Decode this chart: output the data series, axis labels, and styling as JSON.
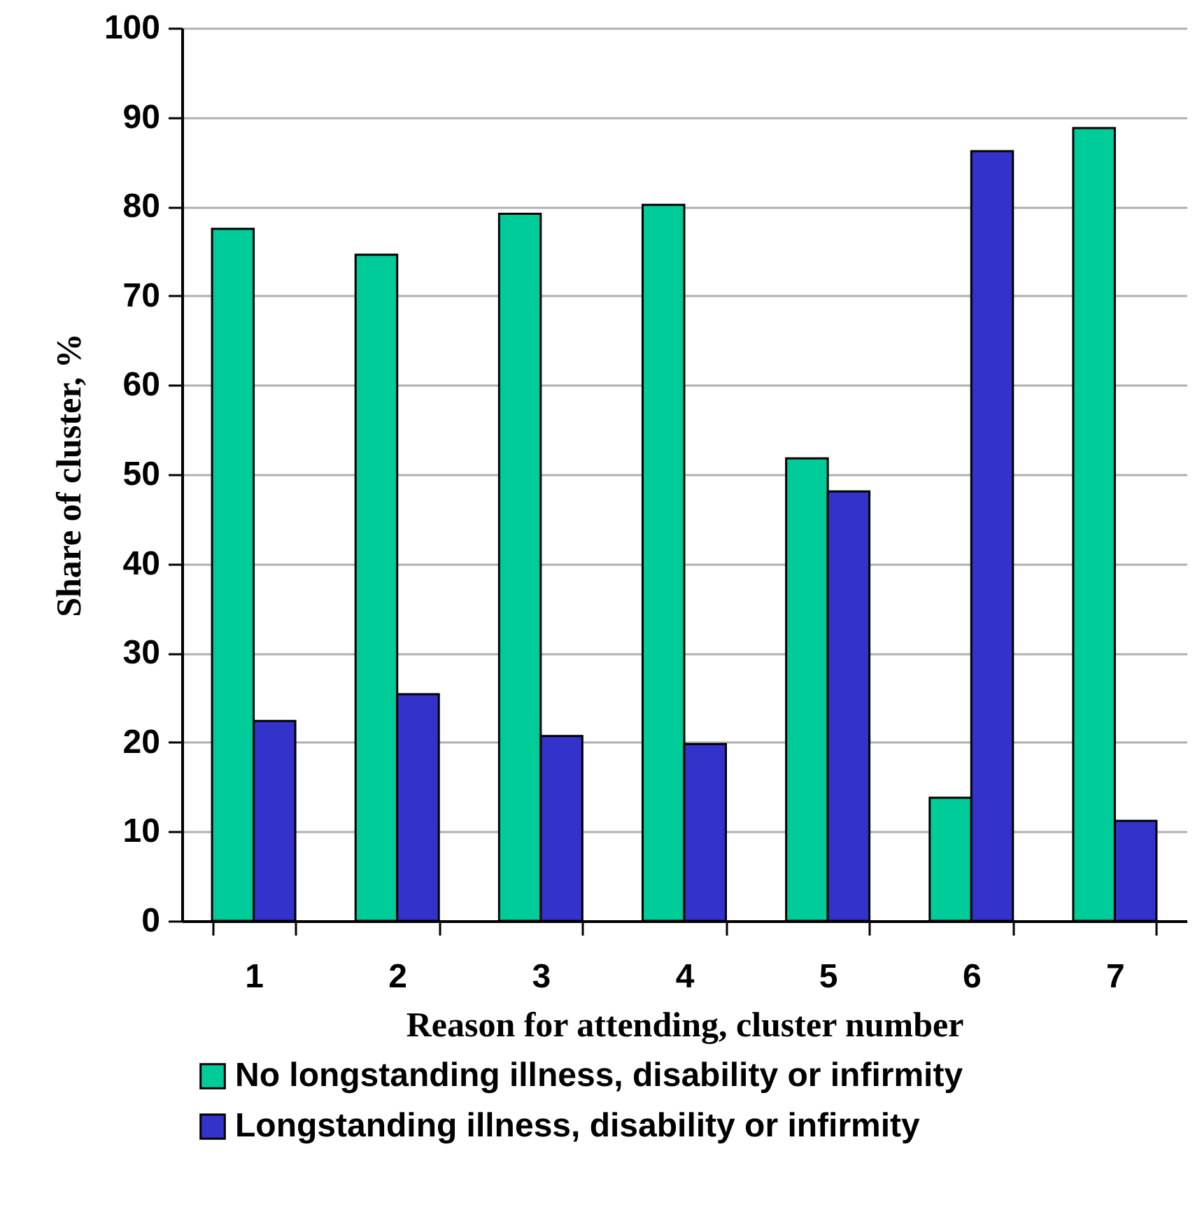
{
  "chart_data": {
    "type": "bar",
    "xlabel": "Reason for attending, cluster number",
    "ylabel": "Share of cluster, %",
    "categories": [
      "1",
      "2",
      "3",
      "4",
      "5",
      "6",
      "7"
    ],
    "series": [
      {
        "name": "No longstanding illness, disability or infirmity",
        "color": "#00cc99",
        "values": [
          77.5,
          74.6,
          79.2,
          80.2,
          51.8,
          13.8,
          88.8
        ]
      },
      {
        "name": "Longstanding illness, disability or infirmity",
        "color": "#3333cc",
        "values": [
          22.4,
          25.4,
          20.7,
          19.8,
          48.1,
          86.2,
          11.2
        ]
      }
    ],
    "ylim": [
      0,
      100
    ],
    "yticks": [
      0,
      10,
      20,
      30,
      40,
      50,
      60,
      70,
      80,
      90,
      100
    ],
    "grid": "y",
    "legend": "bottom"
  }
}
